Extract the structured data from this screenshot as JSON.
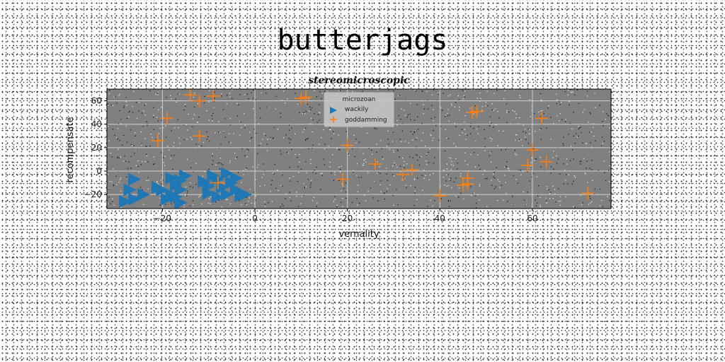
{
  "page_title": "butterjags",
  "chart_data": {
    "type": "scatter",
    "title": "stereomicroscopic",
    "xlabel": "vernality",
    "ylabel": "recompensate",
    "xlim": [
      -32,
      77
    ],
    "ylim": [
      -32,
      70
    ],
    "xticks": [
      -20,
      0,
      20,
      40,
      60
    ],
    "yticks": [
      -20,
      0,
      20,
      40,
      60
    ],
    "grid": true,
    "background": "#808080",
    "legend": {
      "title": "microzoan",
      "placement": "top-center"
    },
    "series": [
      {
        "name": "wackily",
        "marker": "triangle-right",
        "color": "#1f77b4",
        "points": [
          [
            -26,
            -7
          ],
          [
            -27,
            -16
          ],
          [
            -28,
            -26
          ],
          [
            -26,
            -24
          ],
          [
            -24,
            -20
          ],
          [
            -21,
            -14
          ],
          [
            -20,
            -16
          ],
          [
            -19,
            -24
          ],
          [
            -18,
            -20
          ],
          [
            -18,
            -6
          ],
          [
            -17,
            -12
          ],
          [
            -17,
            -22
          ],
          [
            -16,
            -16
          ],
          [
            -16,
            -27
          ],
          [
            -15,
            -4
          ],
          [
            -16,
            -8
          ],
          [
            -9,
            -4
          ],
          [
            -10,
            -13
          ],
          [
            -10,
            -19
          ],
          [
            -8,
            -7
          ],
          [
            -7,
            -14
          ],
          [
            -6,
            -2
          ],
          [
            -6,
            -20
          ],
          [
            -5,
            -10
          ],
          [
            -4,
            -16
          ],
          [
            -3,
            -21
          ],
          [
            -2,
            -20
          ],
          [
            -8,
            -22
          ],
          [
            -4,
            -6
          ],
          [
            -11,
            -9
          ]
        ]
      },
      {
        "name": "goddamming",
        "marker": "plus",
        "color": "#ff7f0e",
        "points": [
          [
            -14,
            65
          ],
          [
            -12,
            60
          ],
          [
            -9,
            64
          ],
          [
            -19,
            45
          ],
          [
            -12,
            30
          ],
          [
            -21,
            26
          ],
          [
            -8,
            -10
          ],
          [
            10,
            62
          ],
          [
            11,
            63
          ],
          [
            47,
            50
          ],
          [
            48,
            51
          ],
          [
            62,
            45
          ],
          [
            60,
            18
          ],
          [
            20,
            22
          ],
          [
            19,
            -7
          ],
          [
            26,
            6
          ],
          [
            32,
            -3
          ],
          [
            34,
            1
          ],
          [
            40,
            -21
          ],
          [
            45,
            -12
          ],
          [
            46,
            -6
          ],
          [
            46,
            -11
          ],
          [
            59,
            5
          ],
          [
            63,
            8
          ],
          [
            72,
            -19
          ]
        ]
      }
    ]
  }
}
